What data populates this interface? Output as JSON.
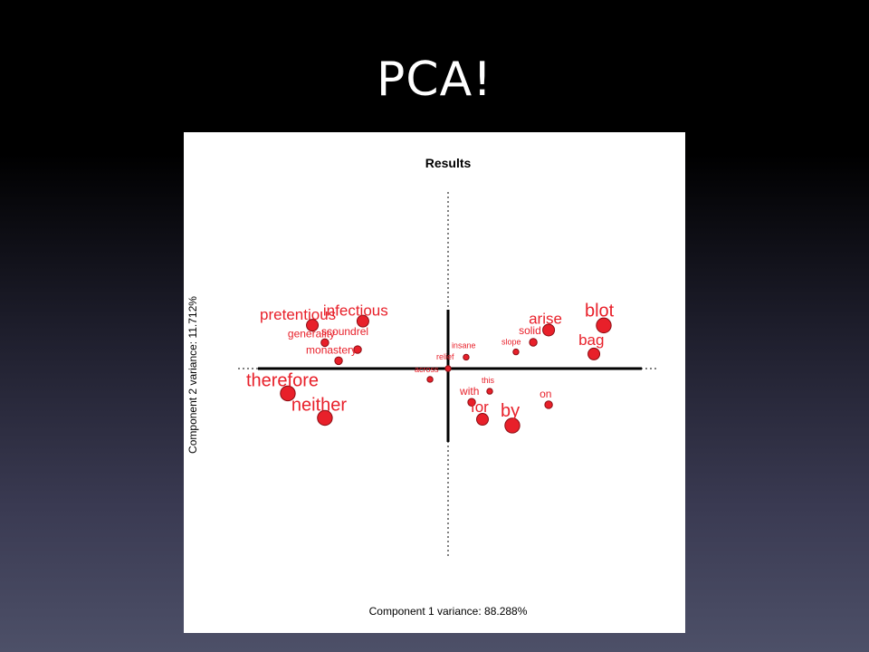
{
  "slide": {
    "title": "PCA!"
  },
  "chart_data": {
    "type": "scatter",
    "title": "Results",
    "xlabel": "Component 1 variance: 88.288%",
    "ylabel": "Component 2 variance: 11.712%",
    "xlim": [
      -1,
      1
    ],
    "ylim": [
      -1,
      1
    ],
    "grid": false,
    "colors": {
      "point_fill": "#e8202a",
      "point_stroke": "#8a0c12",
      "label": "#e8202a",
      "axis": "#000000"
    },
    "points": [
      {
        "label": "pretentious",
        "x": -0.714,
        "y": 0.244,
        "size": 3
      },
      {
        "label": "infectious",
        "x": -0.448,
        "y": 0.267,
        "size": 3
      },
      {
        "label": "generality",
        "x": -0.648,
        "y": 0.146,
        "size": 2
      },
      {
        "label": "scoundrel",
        "x": -0.476,
        "y": 0.107,
        "size": 2
      },
      {
        "label": "monastery",
        "x": -0.576,
        "y": 0.044,
        "size": 2
      },
      {
        "label": "therefore",
        "x": -0.843,
        "y": -0.14,
        "size": 4
      },
      {
        "label": "neither",
        "x": -0.648,
        "y": -0.278,
        "size": 4
      },
      {
        "label": "insane",
        "x": 0.095,
        "y": 0.064,
        "size": 1
      },
      {
        "label": "relief",
        "x": 0.0,
        "y": 0.0,
        "size": 1
      },
      {
        "label": "across",
        "x": -0.095,
        "y": -0.061,
        "size": 1
      },
      {
        "label": "blot",
        "x": 0.819,
        "y": 0.243,
        "size": 4
      },
      {
        "label": "arise",
        "x": 0.529,
        "y": 0.217,
        "size": 3
      },
      {
        "label": "solid",
        "x": 0.448,
        "y": 0.148,
        "size": 2
      },
      {
        "label": "slope",
        "x": 0.357,
        "y": 0.094,
        "size": 1
      },
      {
        "label": "bag",
        "x": 0.767,
        "y": 0.082,
        "size": 3
      },
      {
        "label": "this",
        "x": 0.219,
        "y": -0.128,
        "size": 1
      },
      {
        "label": "with",
        "x": 0.124,
        "y": -0.19,
        "size": 2
      },
      {
        "label": "on",
        "x": 0.529,
        "y": -0.204,
        "size": 2
      },
      {
        "label": "for",
        "x": 0.181,
        "y": -0.286,
        "size": 3
      },
      {
        "label": "by",
        "x": 0.338,
        "y": -0.321,
        "size": 4
      }
    ]
  }
}
